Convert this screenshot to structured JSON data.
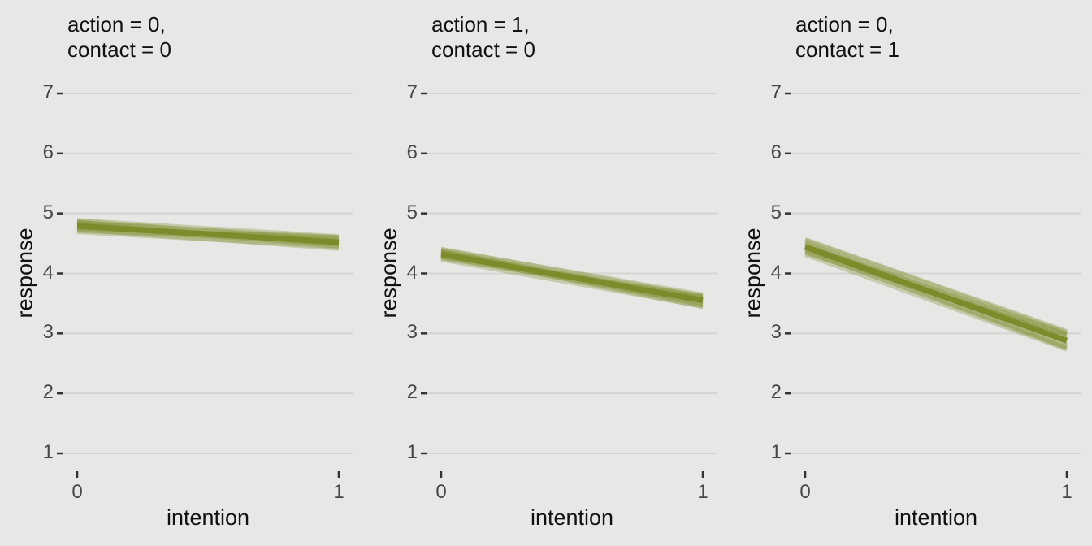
{
  "page": {
    "background": "#e7e7e6"
  },
  "colors": {
    "line": "#7d8b2b",
    "gridline": "#d4d4d3",
    "tick_mark": "#333333",
    "tick_label": "#474747",
    "text": "#111111"
  },
  "chart_data": {
    "type": "line",
    "title": "",
    "xlabel": "intention",
    "ylabel": "response",
    "x": [
      0,
      1
    ],
    "xticks": [
      "0",
      "1"
    ],
    "yticks": [
      1,
      2,
      3,
      4,
      5,
      6,
      7
    ],
    "xlim": [
      0,
      1
    ],
    "ylim": [
      1,
      7
    ],
    "grid": "horizontal major gridlines only",
    "legend": "none",
    "style": "three facets; each shows a bundle of semi-transparent posterior draw lines (spaghetti band) around a mean line, olive color, on gray panel",
    "facets": [
      {
        "title": "action = 0,\ncontact = 0",
        "x": [
          0,
          1
        ],
        "mean": [
          4.79,
          4.52
        ],
        "band_at_x0": [
          4.67,
          4.91
        ],
        "band_at_x1": [
          4.4,
          4.64
        ],
        "draw_offsets": [
          [
            -0.1,
            -0.08
          ],
          [
            -0.06,
            -0.11
          ],
          [
            -0.03,
            -0.04
          ],
          [
            0.0,
            0.05
          ],
          [
            0.03,
            -0.02
          ],
          [
            0.06,
            0.08
          ],
          [
            0.09,
            0.03
          ],
          [
            -0.08,
            0.02
          ],
          [
            0.05,
            -0.07
          ],
          [
            0.1,
            0.1
          ],
          [
            -0.04,
            0.09
          ],
          [
            0.07,
            -0.04
          ]
        ]
      },
      {
        "title": "action = 1,\ncontact = 0",
        "x": [
          0,
          1
        ],
        "mean": [
          4.32,
          3.55
        ],
        "band_at_x0": [
          4.23,
          4.41
        ],
        "band_at_x1": [
          3.43,
          3.67
        ],
        "draw_offsets": [
          [
            -0.09,
            -0.1
          ],
          [
            -0.05,
            -0.04
          ],
          [
            -0.02,
            0.06
          ],
          [
            0.02,
            -0.08
          ],
          [
            0.05,
            0.02
          ],
          [
            0.08,
            0.1
          ],
          [
            -0.07,
            0.04
          ],
          [
            0.04,
            -0.05
          ],
          [
            0.09,
            0.07
          ],
          [
            0.0,
            -0.11
          ],
          [
            -0.04,
            0.08
          ],
          [
            0.06,
            -0.02
          ]
        ]
      },
      {
        "title": "action = 0,\ncontact = 1",
        "x": [
          0,
          1
        ],
        "mean": [
          4.44,
          2.88
        ],
        "band_at_x0": [
          4.31,
          4.57
        ],
        "band_at_x1": [
          2.72,
          3.04
        ],
        "draw_offsets": [
          [
            -0.13,
            -0.15
          ],
          [
            -0.08,
            -0.08
          ],
          [
            -0.04,
            0.06
          ],
          [
            0.0,
            -0.12
          ],
          [
            0.04,
            0.1
          ],
          [
            0.08,
            0.04
          ],
          [
            0.12,
            0.14
          ],
          [
            -0.1,
            0.1
          ],
          [
            0.06,
            -0.06
          ],
          [
            0.13,
            0.16
          ],
          [
            -0.06,
            -0.13
          ],
          [
            0.02,
            0.12
          ]
        ]
      }
    ]
  }
}
